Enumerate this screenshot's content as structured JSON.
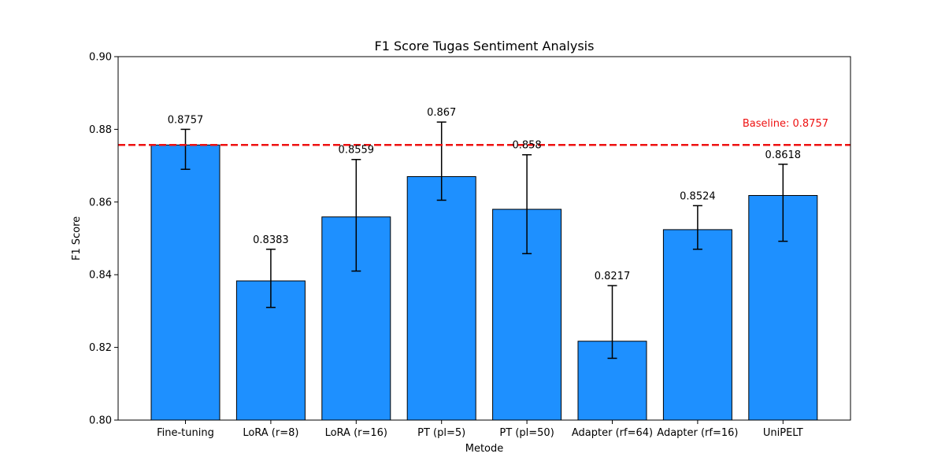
{
  "chart_data": {
    "type": "bar",
    "title": "F1 Score Tugas Sentiment Analysis",
    "xlabel": "Metode",
    "ylabel": "F1 Score",
    "ylim": [
      0.8,
      0.9
    ],
    "yticks": [
      0.8,
      0.82,
      0.84,
      0.86,
      0.88,
      0.9
    ],
    "ytick_labels": [
      "0.80",
      "0.82",
      "0.84",
      "0.86",
      "0.88",
      "0.90"
    ],
    "grid": false,
    "categories": [
      "Fine-tuning",
      "LoRA (r=8)",
      "LoRA (r=16)",
      "PT (pl=5)",
      "PT (pl=50)",
      "Adapter (rf=64)",
      "Adapter (rf=16)",
      "UniPELT"
    ],
    "values": [
      0.8757,
      0.8383,
      0.8559,
      0.867,
      0.858,
      0.8217,
      0.8524,
      0.8618
    ],
    "value_labels": [
      "0.8757",
      "0.8383",
      "0.8559",
      "0.867",
      "0.858",
      "0.8217",
      "0.8524",
      "0.8618"
    ],
    "error_low": [
      0.869,
      0.831,
      0.841,
      0.8605,
      0.8458,
      0.817,
      0.847,
      0.8492
    ],
    "error_high": [
      0.88,
      0.847,
      0.8717,
      0.882,
      0.873,
      0.837,
      0.859,
      0.8704
    ],
    "bar_color": "#1e90ff",
    "baseline": {
      "value": 0.8757,
      "label": "Baseline: 0.8757",
      "color": "#ee1111"
    }
  }
}
